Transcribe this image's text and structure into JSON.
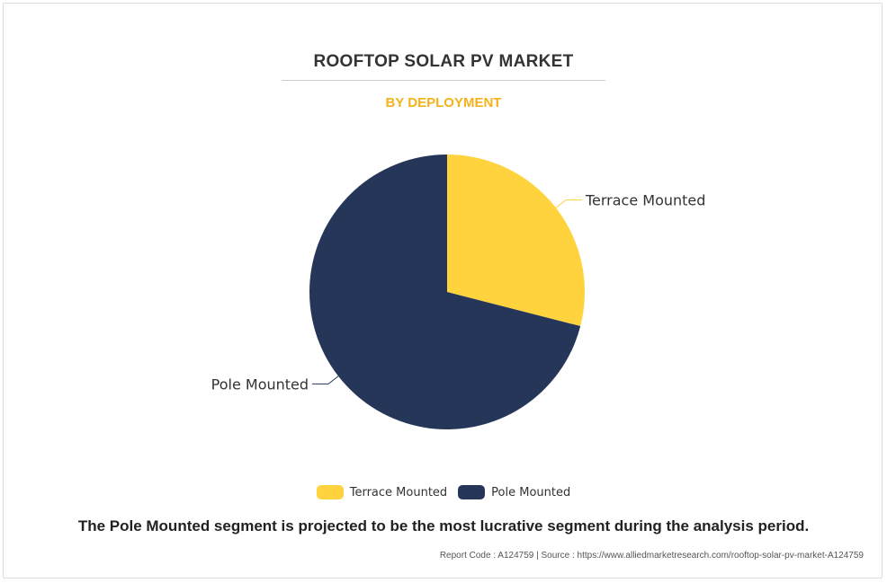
{
  "header": {
    "title": "ROOFTOP SOLAR PV MARKET",
    "subtitle": "BY DEPLOYMENT",
    "subtitle_color": "#f5b21b"
  },
  "chart_data": {
    "type": "pie",
    "title": "ROOFTOP SOLAR PV MARKET",
    "subtitle": "BY DEPLOYMENT",
    "slices": [
      {
        "label": "Terrace Mounted",
        "value": 29,
        "color": "#ffd33d"
      },
      {
        "label": "Pole Mounted",
        "value": 71,
        "color": "#253658"
      }
    ],
    "legend_position": "bottom-center"
  },
  "legend": {
    "items": [
      {
        "label": "Terrace Mounted",
        "color": "#ffd33d"
      },
      {
        "label": "Pole Mounted",
        "color": "#253658"
      }
    ]
  },
  "caption": "The Pole Mounted segment is projected to be the most lucrative segment during the analysis period.",
  "footer": {
    "text": "Report Code : A124759  |  Source : https://www.alliedmarketresearch.com/rooftop-solar-pv-market-A124759"
  }
}
